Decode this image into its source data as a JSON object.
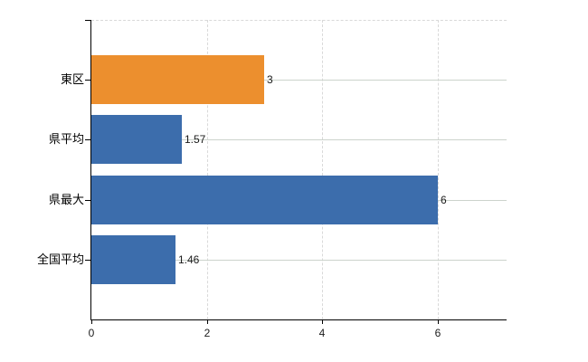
{
  "chart_data": {
    "type": "bar",
    "orientation": "horizontal",
    "title": "",
    "xlabel": "",
    "ylabel": "",
    "categories": [
      "東区",
      "県平均",
      "県最大",
      "全国平均"
    ],
    "values": [
      3,
      1.57,
      6,
      1.46
    ],
    "value_labels": [
      "3",
      "1.57",
      "6",
      "1.46"
    ],
    "bar_colors": [
      "#ec8f2e",
      "#3c6dac",
      "#3c6dac",
      "#3c6dac"
    ],
    "x_ticks": [
      0,
      2,
      4,
      6
    ],
    "x_tick_labels": [
      "0",
      "2",
      "4",
      "6"
    ],
    "xlim": [
      0,
      7.2
    ],
    "legend": "none",
    "grid": {
      "vertical": "dashed",
      "horizontal": "solid line at each category center",
      "plot_top_border": "dashed"
    }
  },
  "colors": {
    "background": "#ffffff",
    "bar_orange": "#ec8f2e",
    "bar_blue": "#3c6dac",
    "axis_line": "#000000",
    "grid_vertical": "#d9d9d9",
    "grid_horizontal": "#ccd3cc",
    "plot_border_top": "#d9d9d9",
    "category_text": "#000000",
    "value_text": "#1b1b1b"
  }
}
